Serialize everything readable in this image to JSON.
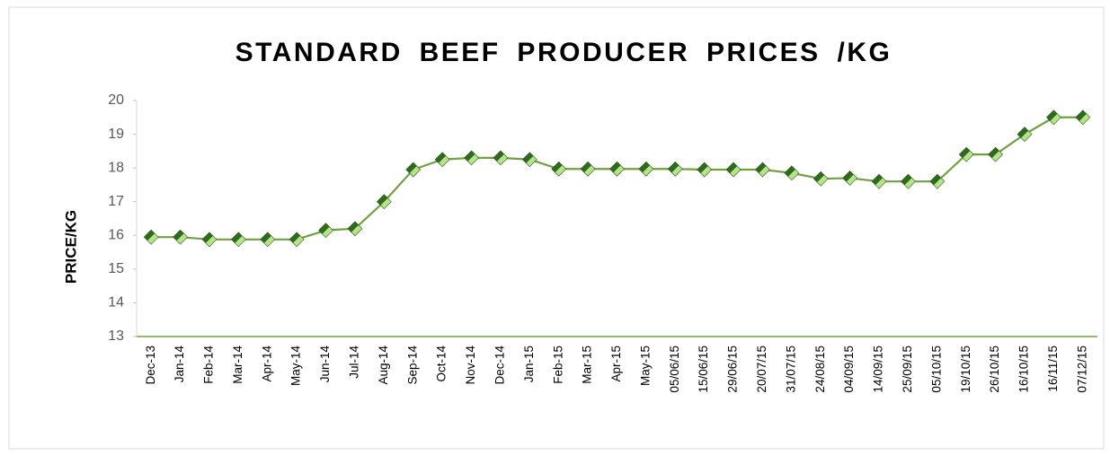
{
  "chart_data": {
    "type": "line",
    "title": "STANDARD BEEF PRODUCER PRICES /KG",
    "y_label": "PRICE/KG",
    "categories": [
      "Dec-13",
      "Jan-14",
      "Feb-14",
      "Mar-14",
      "Apr-14",
      "May-14",
      "Jun-14",
      "Jul-14",
      "Aug-14",
      "Sep-14",
      "Oct-14",
      "Nov-14",
      "Dec-14",
      "Jan-15",
      "Feb-15",
      "Mar-15",
      "Apr-15",
      "May-15",
      "05/06/15",
      "15/06/15",
      "29/06/15",
      "20/07/15",
      "31/07/15",
      "24/08/15",
      "04/09/15",
      "14/09/15",
      "25/09/15",
      "05/10/15",
      "19/10/15",
      "26/10/15",
      "16/10/15",
      "16/11/15",
      "07/12/15"
    ],
    "series": [
      {
        "name": "Price",
        "color": "#70a040",
        "marker_color": "#2f6b1f",
        "values": [
          15.95,
          15.95,
          15.88,
          15.88,
          15.88,
          15.88,
          16.15,
          16.2,
          17.0,
          17.95,
          18.25,
          18.3,
          18.3,
          18.25,
          17.97,
          17.97,
          17.97,
          17.97,
          17.97,
          17.95,
          17.95,
          17.95,
          17.85,
          17.68,
          17.7,
          17.6,
          17.6,
          17.6,
          18.4,
          18.4,
          19.0,
          19.5,
          19.5
        ]
      }
    ],
    "ylim": [
      13,
      20
    ],
    "yticks": [
      13,
      14,
      15,
      16,
      17,
      18,
      19,
      20
    ],
    "grid": false,
    "legend": false
  }
}
